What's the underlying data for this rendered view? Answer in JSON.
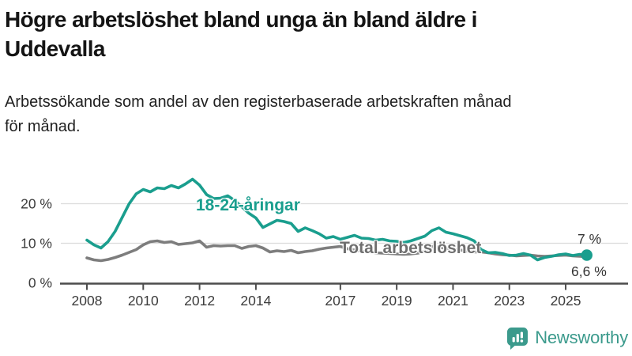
{
  "header": {
    "title_line1": "Högre arbetslöshet bland unga än bland äldre i",
    "title_line2": "Uddevalla",
    "subtitle_line1": "Arbetssökande som andel av den registerbaserade arbetskraften månad",
    "subtitle_line2": "för månad."
  },
  "chart_data": {
    "type": "line",
    "title": "Högre arbetslöshet bland unga än bland äldre i Uddevalla",
    "subtitle": "Arbetssökande som andel av den registerbaserade arbetskraften månad för månad.",
    "unit": "%",
    "x_start": 2008,
    "x_step_years": 0.25,
    "xlim": [
      2008,
      2026
    ],
    "ylim": [
      0,
      27
    ],
    "x_ticks": [
      2008,
      2010,
      2012,
      2014,
      2017,
      2019,
      2021,
      2023,
      2025
    ],
    "y_ticks": [
      0,
      10,
      20
    ],
    "y_tick_labels": [
      "0 %",
      "10 %",
      "20 %"
    ],
    "grid": "horizontal gridlines at 10% and 20%",
    "legend": "inline series labels",
    "series": [
      {
        "name": "18-24-åringar",
        "color": "#1a9e8e",
        "end_label": "7 %",
        "end_value": 7.0,
        "end_dot": true,
        "values": [
          10.8,
          9.6,
          8.8,
          10.4,
          13.0,
          16.5,
          20.0,
          22.5,
          23.6,
          23.0,
          24.0,
          23.8,
          24.6,
          24.0,
          25.0,
          26.2,
          24.7,
          22.3,
          21.3,
          21.4,
          22.0,
          20.8,
          19.2,
          17.6,
          16.4,
          14.0,
          14.9,
          15.8,
          15.5,
          15.0,
          13.0,
          13.9,
          13.2,
          12.4,
          11.3,
          11.7,
          11.0,
          11.5,
          12.0,
          11.3,
          11.2,
          10.8,
          11.0,
          10.6,
          10.5,
          10.2,
          10.6,
          11.2,
          11.8,
          13.2,
          13.9,
          12.8,
          12.4,
          11.9,
          11.4,
          10.6,
          8.4,
          7.6,
          7.7,
          7.4,
          6.9,
          7.0,
          7.4,
          7.0,
          5.8,
          6.4,
          6.7,
          7.1,
          7.3,
          6.9,
          7.2,
          7.0
        ]
      },
      {
        "name": "Total arbetslöshet",
        "color": "#7d7d7d",
        "end_label": "6,6 %",
        "end_value": 6.6,
        "end_dot": false,
        "values": [
          6.3,
          5.8,
          5.6,
          5.9,
          6.4,
          7.0,
          7.7,
          8.4,
          9.6,
          10.4,
          10.6,
          10.2,
          10.4,
          9.7,
          9.9,
          10.1,
          10.6,
          9.0,
          9.4,
          9.3,
          9.4,
          9.4,
          8.7,
          9.2,
          9.4,
          8.8,
          7.8,
          8.1,
          7.9,
          8.2,
          7.6,
          7.9,
          8.1,
          8.5,
          8.8,
          9.0,
          9.2,
          8.6,
          8.3,
          8.0,
          7.8,
          7.6,
          7.5,
          7.4,
          7.3,
          7.2,
          7.3,
          7.5,
          8.0,
          9.2,
          9.0,
          8.7,
          8.5,
          8.3,
          8.0,
          7.8,
          7.8,
          7.6,
          7.3,
          7.1,
          7.0,
          6.8,
          6.9,
          7.0,
          6.8,
          6.7,
          6.8,
          6.9,
          7.0,
          6.8,
          6.7,
          6.6
        ]
      }
    ]
  },
  "colors": {
    "teal_line": "#1a9e8e",
    "gray_line": "#7d7d7d",
    "grid": "#dcdcdc",
    "axis": "#4c4c4c",
    "tick_text": "#3c3c3c",
    "title_text": "#141414",
    "logo_teal": "#3b9a8c"
  },
  "logo": {
    "text": "Newsworthy"
  }
}
